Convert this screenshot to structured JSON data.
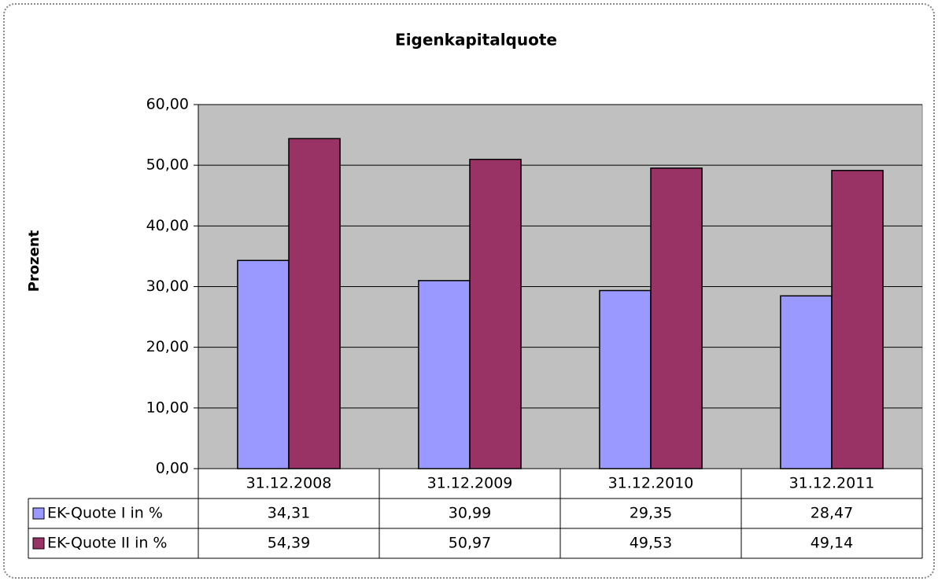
{
  "chart_data": {
    "type": "bar",
    "title": "Eigenkapitalquote",
    "ylabel": "Prozent",
    "categories": [
      "31.12.2008",
      "31.12.2009",
      "31.12.2010",
      "31.12.2011"
    ],
    "series": [
      {
        "name": "EK-Quote I in %",
        "color": "#9999ff",
        "values": [
          34.31,
          30.99,
          29.35,
          28.47
        ],
        "value_labels": [
          "34,31",
          "30,99",
          "29,35",
          "28,47"
        ]
      },
      {
        "name": "EK-Quote II in %",
        "color": "#993366",
        "values": [
          54.39,
          50.97,
          49.53,
          49.14
        ],
        "value_labels": [
          "54,39",
          "50,97",
          "49,53",
          "49,14"
        ]
      }
    ],
    "ylim": [
      0,
      60
    ],
    "yticks": [
      {
        "value": 0,
        "label": "0,00"
      },
      {
        "value": 10,
        "label": "10,00"
      },
      {
        "value": 20,
        "label": "20,00"
      },
      {
        "value": 30,
        "label": "30,00"
      },
      {
        "value": 40,
        "label": "40,00"
      },
      {
        "value": 50,
        "label": "50,00"
      },
      {
        "value": 60,
        "label": "60,00"
      }
    ],
    "grid": true,
    "plot_background": "#c0c0c0"
  }
}
